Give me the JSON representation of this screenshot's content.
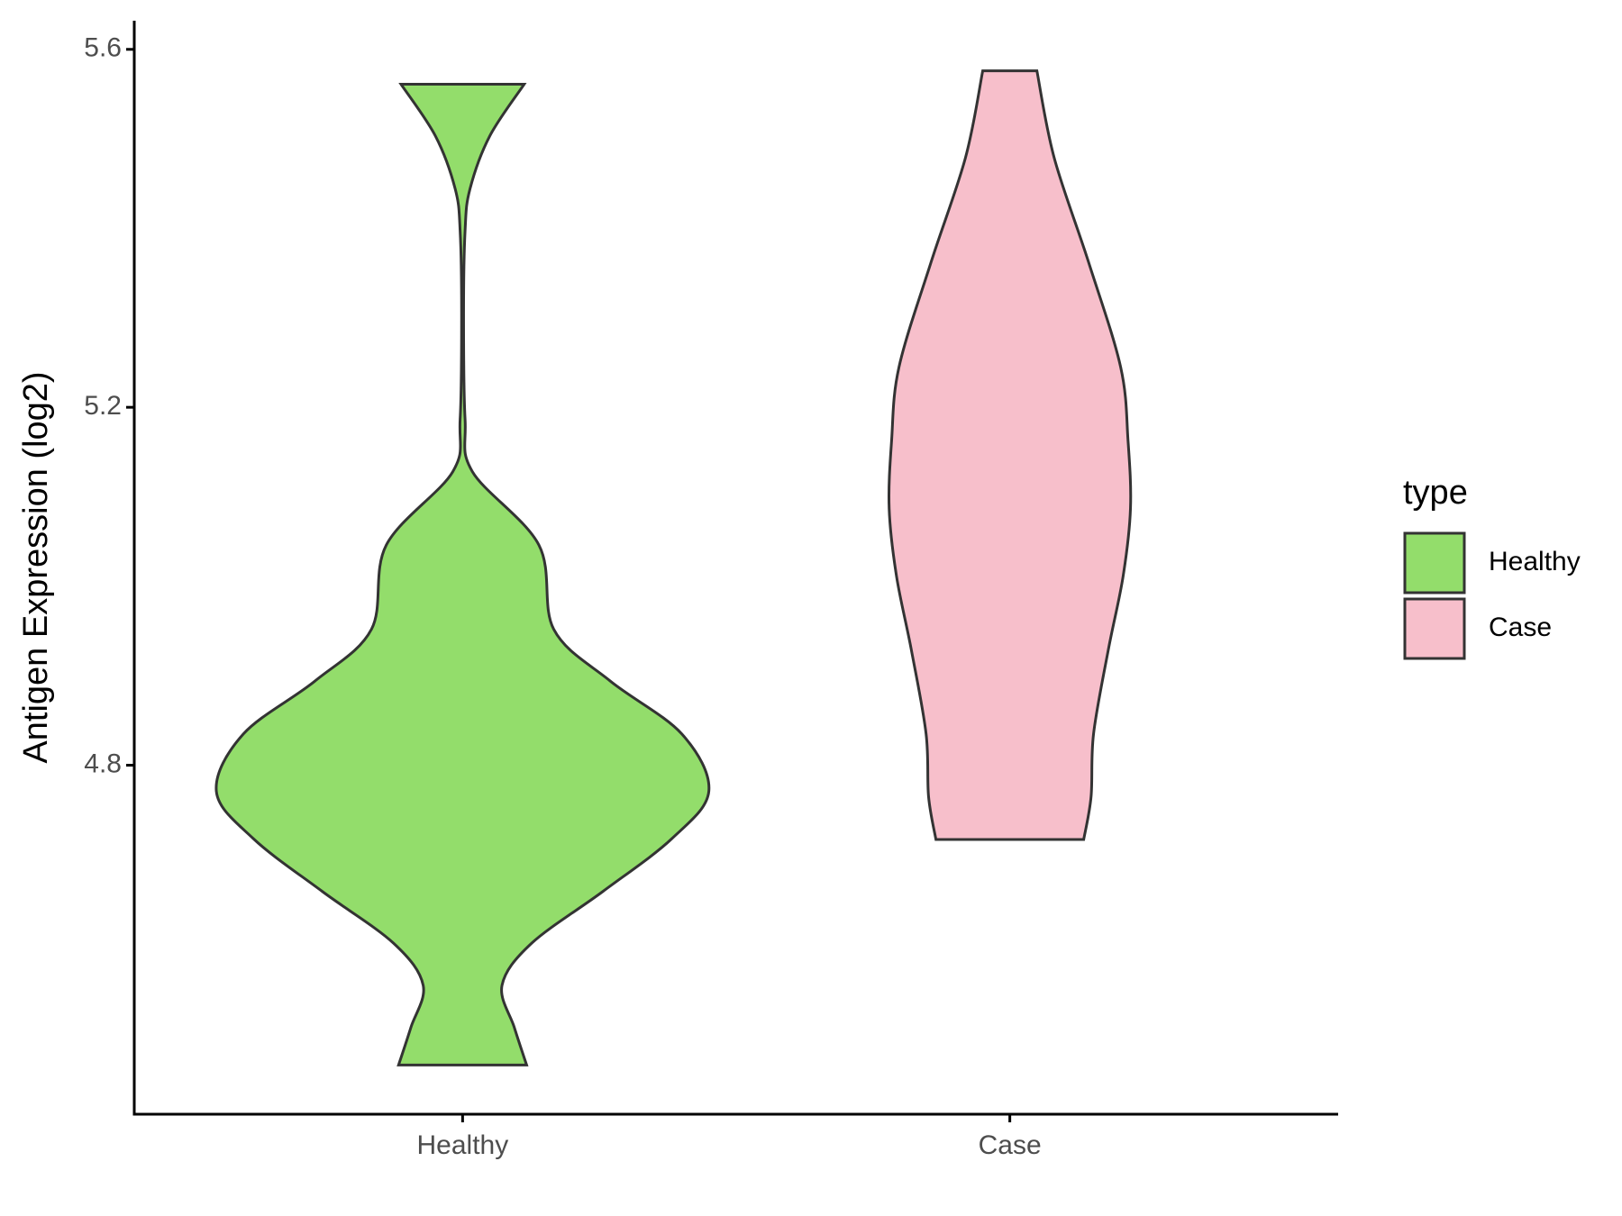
{
  "chart_data": {
    "type": "violin",
    "y_label": "Antigen Expression (log2)",
    "categories": [
      "Healthy",
      "Case"
    ],
    "legend_title": "type",
    "legend_position": "right",
    "ylim": [
      4.41,
      5.632
    ],
    "yticks": [
      4.8,
      5.2,
      5.6
    ],
    "series": [
      {
        "name": "Healthy",
        "color": "#93dd6b",
        "y": [
          5.561,
          5.503,
          5.444,
          5.397,
          5.304,
          5.187,
          5.128,
          5.046,
          4.952,
          4.894,
          4.835,
          4.771,
          4.718,
          4.659,
          4.601,
          4.554,
          4.507,
          4.465
        ],
        "density": [
          0.25,
          0.11,
          0.03,
          0.01,
          0.004,
          0.01,
          0.04,
          0.31,
          0.37,
          0.6,
          0.89,
          1,
          0.85,
          0.57,
          0.28,
          0.16,
          0.21,
          0.26
        ]
      },
      {
        "name": "Case",
        "color": "#f7bfcb",
        "y": [
          5.576,
          5.479,
          5.362,
          5.245,
          5.163,
          5.087,
          5.011,
          4.929,
          4.835,
          4.765,
          4.717
        ],
        "density": [
          0.11,
          0.18,
          0.32,
          0.45,
          0.48,
          0.49,
          0.46,
          0.4,
          0.34,
          0.33,
          0.3
        ]
      }
    ]
  }
}
